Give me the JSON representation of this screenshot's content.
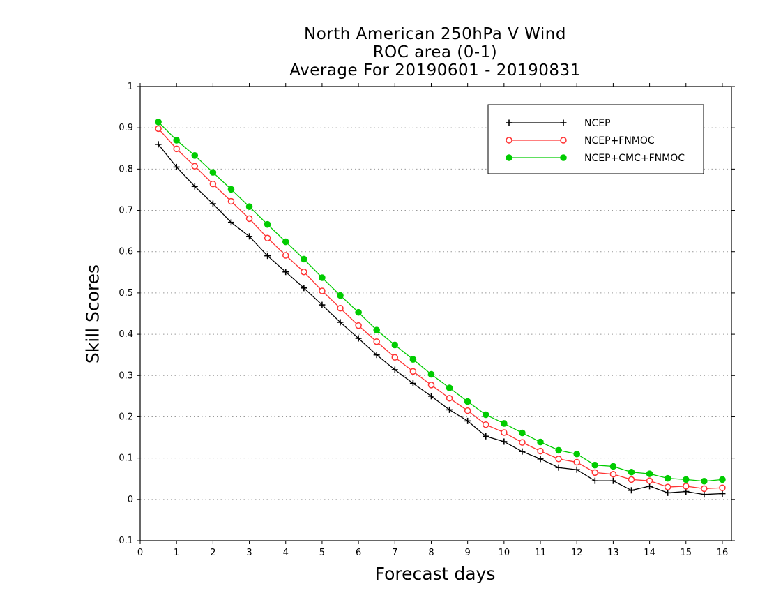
{
  "chart_data": {
    "type": "line",
    "title": [
      "North American 250hPa V Wind",
      "ROC area (0-1)",
      "Average For 20190601 - 20190831"
    ],
    "xlabel": "Forecast days",
    "ylabel": "Skill Scores",
    "xlim": [
      0,
      16.25
    ],
    "ylim": [
      -0.1,
      1
    ],
    "xticks": [
      0,
      1,
      2,
      3,
      4,
      5,
      6,
      7,
      8,
      9,
      10,
      11,
      12,
      13,
      14,
      15,
      16
    ],
    "yticks": [
      -0.1,
      0,
      0.1,
      0.2,
      0.3,
      0.4,
      0.5,
      0.6,
      0.7,
      0.8,
      0.9,
      1
    ],
    "ytick_labels": [
      "-0.1",
      "0",
      "0.1",
      "0.2",
      "0.3",
      "0.4",
      "0.5",
      "0.6",
      "0.7",
      "0.8",
      "0.9",
      "1"
    ],
    "grid": "dotted horizontal",
    "legend_position": "top-right",
    "x": [
      0.5,
      1,
      1.5,
      2,
      2.5,
      3,
      3.5,
      4,
      4.5,
      5,
      5.5,
      6,
      6.5,
      7,
      7.5,
      8,
      8.5,
      9,
      9.5,
      10,
      10.5,
      11,
      11.5,
      12,
      12.5,
      13,
      13.5,
      14,
      14.5,
      15,
      15.5,
      16
    ],
    "series": [
      {
        "name": "NCEP",
        "color": "#000000",
        "marker": "plus",
        "values": [
          0.86,
          0.805,
          0.758,
          0.716,
          0.671,
          0.637,
          0.59,
          0.551,
          0.512,
          0.471,
          0.429,
          0.39,
          0.35,
          0.314,
          0.281,
          0.25,
          0.217,
          0.19,
          0.153,
          0.14,
          0.116,
          0.098,
          0.077,
          0.072,
          0.045,
          0.045,
          0.022,
          0.032,
          0.016,
          0.019,
          0.012,
          0.014
        ]
      },
      {
        "name": "NCEP+FNMOC",
        "color": "#ff3333",
        "marker": "open-circle",
        "values": [
          0.898,
          0.849,
          0.807,
          0.764,
          0.722,
          0.68,
          0.633,
          0.591,
          0.551,
          0.505,
          0.463,
          0.421,
          0.382,
          0.344,
          0.31,
          0.277,
          0.245,
          0.215,
          0.181,
          0.162,
          0.138,
          0.117,
          0.098,
          0.09,
          0.065,
          0.061,
          0.048,
          0.045,
          0.03,
          0.032,
          0.026,
          0.028
        ]
      },
      {
        "name": "NCEP+CMC+FNMOC",
        "color": "#00cc00",
        "marker": "filled-circle",
        "values": [
          0.914,
          0.87,
          0.833,
          0.792,
          0.751,
          0.709,
          0.666,
          0.624,
          0.582,
          0.537,
          0.494,
          0.453,
          0.41,
          0.374,
          0.339,
          0.303,
          0.27,
          0.237,
          0.205,
          0.184,
          0.161,
          0.139,
          0.119,
          0.11,
          0.083,
          0.08,
          0.066,
          0.062,
          0.051,
          0.048,
          0.044,
          0.048
        ]
      }
    ]
  }
}
